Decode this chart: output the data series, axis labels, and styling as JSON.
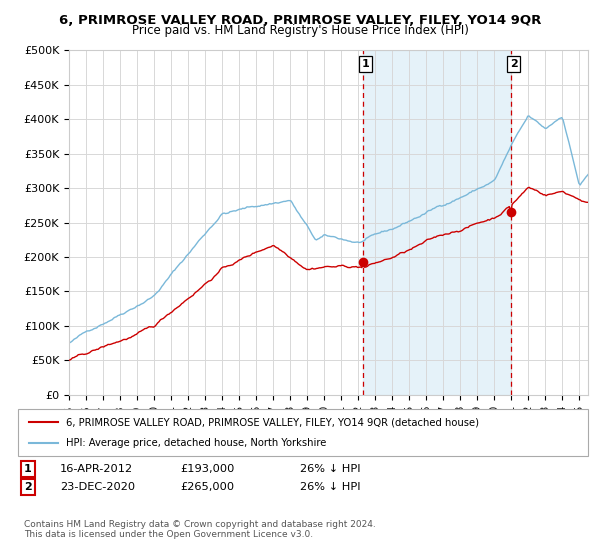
{
  "title": "6, PRIMROSE VALLEY ROAD, PRIMROSE VALLEY, FILEY, YO14 9QR",
  "subtitle": "Price paid vs. HM Land Registry's House Price Index (HPI)",
  "ylabel_ticks": [
    "£0",
    "£50K",
    "£100K",
    "£150K",
    "£200K",
    "£250K",
    "£300K",
    "£350K",
    "£400K",
    "£450K",
    "£500K"
  ],
  "ytick_values": [
    0,
    50000,
    100000,
    150000,
    200000,
    250000,
    300000,
    350000,
    400000,
    450000,
    500000
  ],
  "xlim_start": 1995.0,
  "xlim_end": 2025.5,
  "ylim": [
    0,
    500000
  ],
  "hpi_color": "#7ab8d9",
  "hpi_fill_color": "#daedf7",
  "price_color": "#cc0000",
  "sale1_date": 2012.29,
  "sale1_price": 193000,
  "sale2_date": 2020.98,
  "sale2_price": 265000,
  "legend_label_price": "6, PRIMROSE VALLEY ROAD, PRIMROSE VALLEY, FILEY, YO14 9QR (detached house)",
  "legend_label_hpi": "HPI: Average price, detached house, North Yorkshire",
  "footer": "Contains HM Land Registry data © Crown copyright and database right 2024.\nThis data is licensed under the Open Government Licence v3.0.",
  "background_color": "#ffffff",
  "grid_color": "#d8d8d8",
  "sale1_label": "1",
  "sale2_label": "2",
  "row1_date": "16-APR-2012",
  "row1_price": "£193,000",
  "row1_note": "26% ↓ HPI",
  "row2_date": "23-DEC-2020",
  "row2_price": "£265,000",
  "row2_note": "26% ↓ HPI"
}
